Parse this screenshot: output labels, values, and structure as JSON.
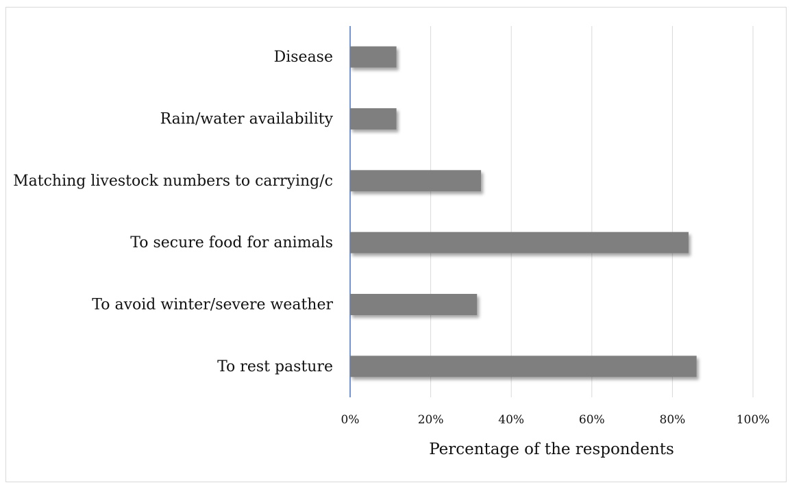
{
  "chart_data": {
    "type": "bar",
    "orientation": "horizontal",
    "categories": [
      "Disease",
      "Rain/water availability",
      "Matching livestock numbers to carrying/c",
      "To secure food for animals",
      "To avoid winter/severe weather",
      "To rest pasture"
    ],
    "values": [
      11.5,
      11.5,
      32.5,
      84,
      31.5,
      86
    ],
    "value_unit": "%",
    "xlabel": "Percentage of the respondents",
    "ylabel": "",
    "xlim": [
      0,
      100
    ],
    "xticks": [
      "0%",
      "20%",
      "40%",
      "60%",
      "80%",
      "100%"
    ],
    "grid": "vertical",
    "bar_color": "#7f7f7f",
    "axis_color": "#4472c4",
    "legend": "none"
  }
}
